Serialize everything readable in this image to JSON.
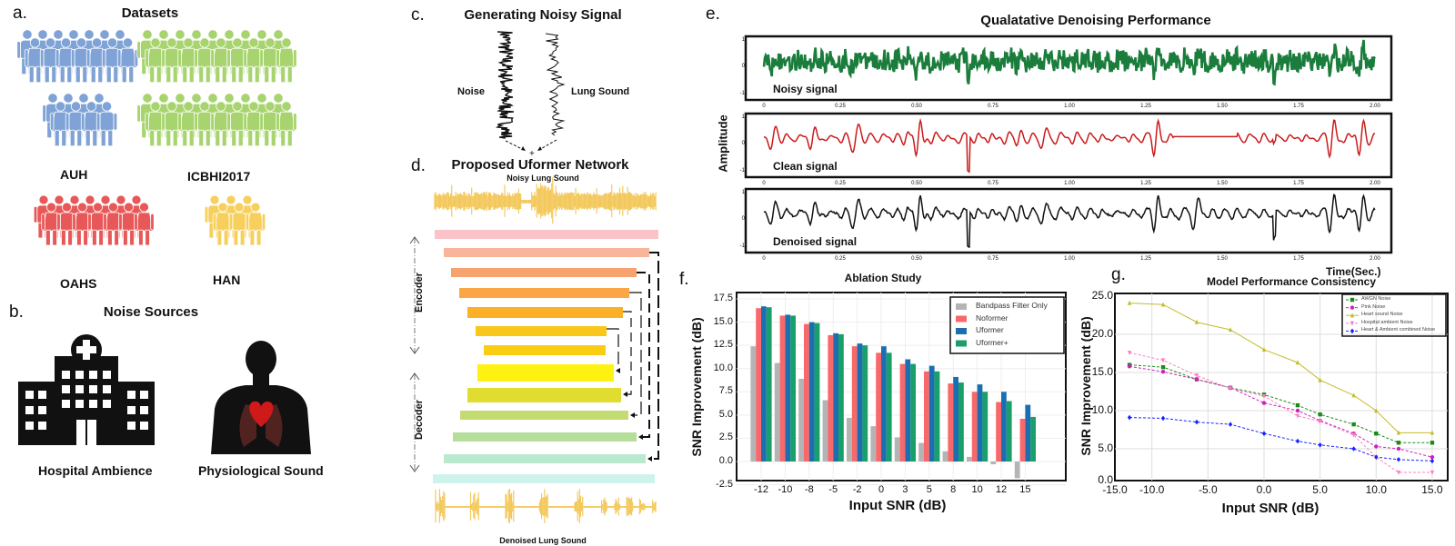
{
  "panels": {
    "a": {
      "label": "a.",
      "title": "Datasets",
      "datasets": [
        {
          "name": "AUH",
          "color": "#7fa3d6"
        },
        {
          "name": "ICBHI2017",
          "color": "#a8d46f"
        },
        {
          "name": "OAHS",
          "color": "#e85858"
        },
        {
          "name": "HAN",
          "color": "#f6cf5c"
        }
      ]
    },
    "b": {
      "label": "b.",
      "title": "Noise Sources",
      "sources": [
        {
          "name": "Hospital Ambience",
          "icon": "hospital-icon"
        },
        {
          "name": "Physiological Sound",
          "icon": "body-heart-icon"
        }
      ]
    },
    "c": {
      "label": "c.",
      "title": "Generating Noisy Signal",
      "noise_label": "Noise",
      "lung_label": "Lung Sound",
      "plus": "+"
    },
    "d": {
      "label": "d.",
      "title": "Proposed Uformer Network",
      "input_label": "Noisy Lung Sound",
      "output_label": "Denoised Lung Sound",
      "encoder_label": "Encoder",
      "decoder_label": "Decoder",
      "wave_color": "#f3c95e"
    },
    "e": {
      "label": "e.",
      "title": "Qualatative Denoising Performance",
      "ylabel": "Amplitude",
      "xlabel": "Time(Sec.)",
      "xticks": [
        "0",
        "0.25",
        "0.50",
        "0.75",
        "1.00",
        "1.25",
        "1.50",
        "1.75",
        "2.00"
      ],
      "yticks": [
        "1",
        "0",
        "-1"
      ],
      "subplots": [
        {
          "label": "Noisy signal",
          "color": "#1b7d3c"
        },
        {
          "label": "Clean signal",
          "color": "#cc1a1a"
        },
        {
          "label": "Denoised signal",
          "color": "#111111"
        }
      ]
    }
  },
  "chart_data": [
    {
      "panel_label": "f.",
      "type": "bar",
      "title": "Ablation Study",
      "xlabel": "Input SNR (dB)",
      "ylabel": "SNR Improvement (dB)",
      "ylim": [
        -2.5,
        17.5
      ],
      "yticks": [
        "17.5",
        "15.0",
        "12.5",
        "10.0",
        "7.5",
        "5.0",
        "2.5",
        "0.0",
        "-2.5"
      ],
      "categories": [
        "-12",
        "-10",
        "-8",
        "-5",
        "-2",
        "0",
        "3",
        "5",
        "8",
        "10",
        "12",
        "15"
      ],
      "grid": true,
      "legend": "top-right",
      "series": [
        {
          "name": "Bandpass Filter Only",
          "color": "#b4b4b4",
          "values": [
            12.4,
            10.6,
            8.9,
            6.6,
            4.7,
            3.8,
            2.6,
            2.0,
            1.1,
            0.5,
            -0.3,
            -1.8
          ]
        },
        {
          "name": "Noformer",
          "color": "#f8686a",
          "values": [
            16.5,
            15.7,
            14.8,
            13.6,
            12.4,
            11.7,
            10.5,
            9.7,
            8.4,
            7.5,
            6.4,
            4.6
          ]
        },
        {
          "name": "Uformer",
          "color": "#1b6fb0",
          "values": [
            16.7,
            15.8,
            15.0,
            13.8,
            12.7,
            12.4,
            11.0,
            10.3,
            9.1,
            8.3,
            7.5,
            6.1
          ]
        },
        {
          "name": "Uformer+",
          "color": "#1a9e6a",
          "values": [
            16.6,
            15.7,
            14.9,
            13.7,
            12.5,
            11.7,
            10.5,
            9.7,
            8.5,
            7.5,
            6.5,
            4.8
          ]
        }
      ]
    },
    {
      "panel_label": "g.",
      "type": "line",
      "title": "Model Performance Consistency",
      "xlabel": "Input SNR (dB)",
      "ylabel": "SNR Improvement (dB)",
      "xlim": [
        -15,
        15
      ],
      "ylim": [
        0,
        25
      ],
      "xticks": [
        "-15.0",
        "-10.0",
        "-5.0",
        "0.0",
        "5.0",
        "10.0",
        "15.0"
      ],
      "yticks": [
        "25.0",
        "20.0",
        "15.0",
        "10.0",
        "5.0",
        "0.0"
      ],
      "grid": true,
      "legend": "top-right",
      "x": [
        -12,
        -9,
        -6,
        -3,
        0,
        3,
        5,
        8,
        10,
        12,
        15
      ],
      "series": [
        {
          "name": "AWGN Noise",
          "color": "#1a8a1a",
          "dash": true,
          "marker": "square",
          "values": [
            16.0,
            15.7,
            14.1,
            13.0,
            12.1,
            10.7,
            9.5,
            8.2,
            7.0,
            5.8,
            5.8
          ]
        },
        {
          "name": "Pink Noise",
          "color": "#cc22bb",
          "dash": true,
          "marker": "circle",
          "values": [
            15.8,
            15.1,
            14.1,
            13.0,
            11.0,
            10.0,
            8.7,
            7.0,
            5.3,
            5.0,
            3.9
          ]
        },
        {
          "name": "Heart sound Noise",
          "color": "#c4bc2a",
          "dash": false,
          "marker": "triangle",
          "values": [
            24.1,
            23.9,
            21.6,
            20.6,
            18.0,
            16.3,
            14.0,
            12.0,
            10.0,
            7.1,
            7.1
          ]
        },
        {
          "name": "Hospital ambient Noise",
          "color": "#ff7fc4",
          "dash": true,
          "marker": "triangle-down",
          "values": [
            17.6,
            16.6,
            14.6,
            12.9,
            11.9,
            9.3,
            8.6,
            6.8,
            3.9,
            1.9,
            1.9
          ]
        },
        {
          "name": "Heart & Ambient combined Noise",
          "color": "#1a22ff",
          "dash": true,
          "marker": "diamond",
          "values": [
            9.1,
            9.0,
            8.5,
            8.2,
            7.0,
            6.0,
            5.5,
            5.0,
            3.9,
            3.6,
            3.4
          ]
        }
      ]
    }
  ]
}
